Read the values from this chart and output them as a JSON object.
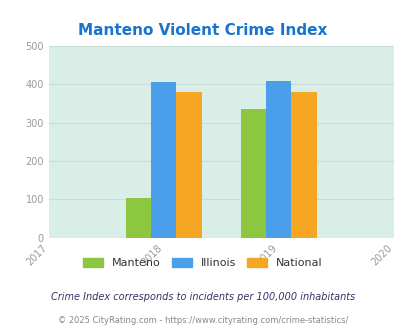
{
  "title": "Manteno Violent Crime Index",
  "title_color": "#1874cd",
  "years": [
    2017,
    2018,
    2019,
    2020
  ],
  "bar_years": [
    2018,
    2019
  ],
  "manteno": [
    103,
    336
  ],
  "illinois": [
    406,
    409
  ],
  "national": [
    381,
    381
  ],
  "manteno_color": "#8dc63f",
  "illinois_color": "#4b9fea",
  "national_color": "#f5a623",
  "bg_color": "#daeee8",
  "ylim": [
    0,
    500
  ],
  "yticks": [
    0,
    100,
    200,
    300,
    400,
    500
  ],
  "legend_labels": [
    "Manteno",
    "Illinois",
    "National"
  ],
  "footnote1": "Crime Index corresponds to incidents per 100,000 inhabitants",
  "footnote2": "© 2025 CityRating.com - https://www.cityrating.com/crime-statistics/",
  "bar_width": 0.22,
  "grid_color": "#c8ddd8",
  "tick_label_color": "#999999",
  "footnote1_color": "#333366",
  "footnote2_color": "#888888"
}
